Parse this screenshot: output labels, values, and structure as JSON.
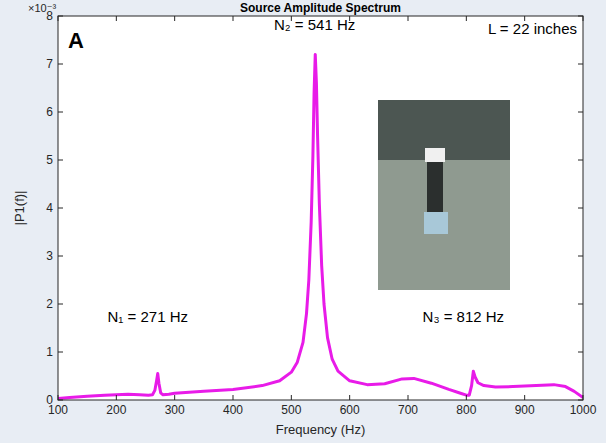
{
  "chart_data": {
    "type": "line",
    "title": "Source Amplitude Spectrum",
    "panel_label": "A",
    "x_label": "Frequency (Hz)",
    "y_label": "|P1(f)|",
    "y_multiplier_label": "×10⁻³",
    "annotations": [
      "N₁ = 271 Hz",
      "N₂ = 541 Hz",
      "N₃ = 812 Hz",
      "L = 22 inches"
    ],
    "color": "#e81be8",
    "grid": false,
    "xlim": [
      100,
      1000
    ],
    "xticks": [
      100,
      200,
      300,
      400,
      500,
      600,
      700,
      800,
      900,
      1000
    ],
    "ylim": [
      0,
      0.008
    ],
    "yticks": [
      0,
      {
        "value": 0.001,
        "label": "1"
      },
      {
        "value": 0.002,
        "label": "2"
      },
      {
        "value": 0.003,
        "label": "3"
      },
      {
        "value": 0.004,
        "label": "4"
      },
      {
        "value": 0.005,
        "label": "5"
      },
      {
        "value": 0.006,
        "label": "6"
      },
      {
        "value": 0.007,
        "label": "7"
      },
      {
        "value": 0.008,
        "label": "8"
      }
    ],
    "x": [
      100,
      120,
      150,
      180,
      200,
      220,
      240,
      255,
      262,
      266,
      269,
      271,
      273,
      276,
      280,
      290,
      300,
      350,
      400,
      450,
      480,
      500,
      510,
      520,
      526,
      530,
      534,
      537,
      539,
      541,
      543,
      545,
      548,
      552,
      556,
      562,
      570,
      580,
      600,
      630,
      660,
      690,
      710,
      740,
      770,
      790,
      800,
      805,
      809,
      812,
      815,
      820,
      830,
      850,
      880,
      920,
      950,
      970,
      985,
      1000
    ],
    "values": [
      3e-05,
      5e-05,
      8e-05,
      0.0001,
      0.00011,
      0.00012,
      0.00011,
      0.0001,
      0.00011,
      0.0002,
      0.0004,
      0.00055,
      0.00035,
      0.00015,
      0.00011,
      0.00012,
      0.00014,
      0.00018,
      0.00022,
      0.0003,
      0.0004,
      0.00058,
      0.00078,
      0.0012,
      0.0018,
      0.0025,
      0.0037,
      0.0051,
      0.0064,
      0.0072,
      0.0066,
      0.0055,
      0.0041,
      0.0028,
      0.002,
      0.0013,
      0.00085,
      0.0006,
      0.0004,
      0.00032,
      0.00034,
      0.00044,
      0.00045,
      0.00035,
      0.00022,
      0.00014,
      0.0001,
      0.0001,
      0.0003,
      0.0006,
      0.00048,
      0.00036,
      0.0003,
      0.00027,
      0.00028,
      0.0003,
      0.00032,
      0.00028,
      0.00018,
      5e-05
    ]
  }
}
